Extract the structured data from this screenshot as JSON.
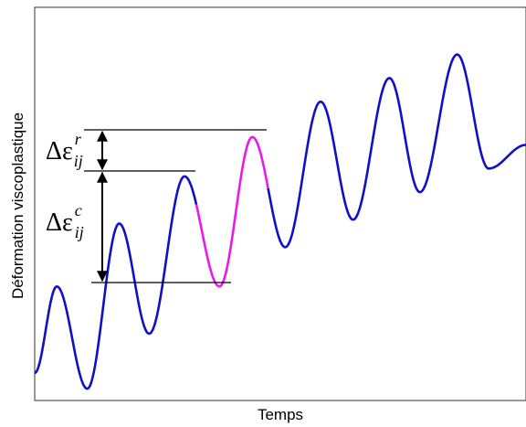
{
  "chart_data": {
    "type": "line",
    "title": "",
    "xlabel": "Temps",
    "ylabel": "Déformation viscoplastique",
    "grid": false,
    "legend": "none",
    "xlim": [
      0,
      1
    ],
    "ylim": [
      0,
      1
    ],
    "colors": {
      "main": "#1010c8",
      "highlight": "#e81ce8",
      "frame": "#555555"
    },
    "series": [
      {
        "x": [
          0.0,
          0.045,
          0.107,
          0.172,
          0.233,
          0.305,
          0.376,
          0.443,
          0.51,
          0.582,
          0.648,
          0.722,
          0.784,
          0.86,
          0.924,
          1.0
        ],
        "y": [
          0.07,
          0.29,
          0.03,
          0.45,
          0.17,
          0.57,
          0.29,
          0.67,
          0.39,
          0.76,
          0.46,
          0.82,
          0.53,
          0.88,
          0.59,
          0.65
        ]
      }
    ],
    "highlight": {
      "x_start": 0.329,
      "x_end": 0.475
    },
    "annotations": [
      {
        "id": "recovery",
        "symbol": "Δε",
        "superscript": "r",
        "subscript": "ij"
      },
      {
        "id": "creep",
        "symbol": "Δε",
        "superscript": "c",
        "subscript": "ij"
      }
    ]
  }
}
